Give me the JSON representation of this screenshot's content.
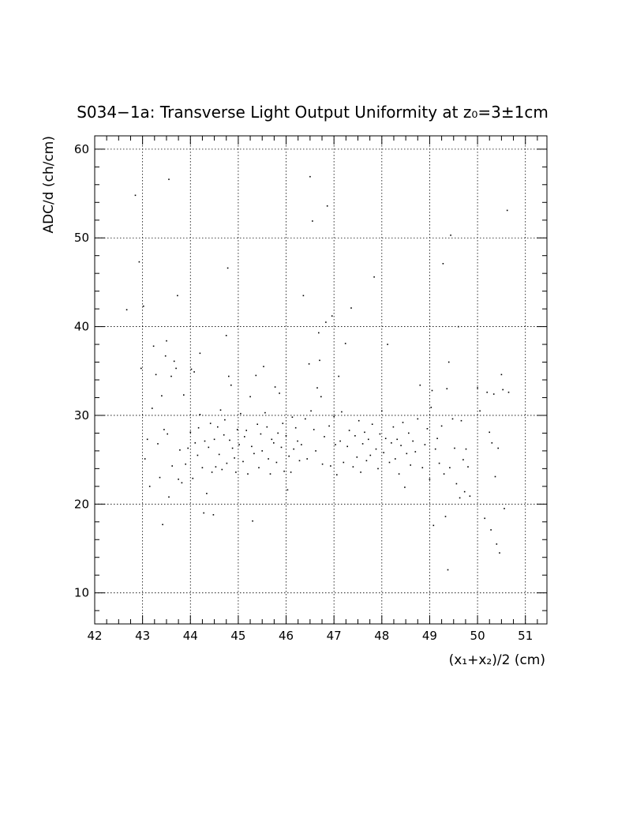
{
  "chart_data": {
    "type": "scatter",
    "title": "S034−1a: Transverse Light Output Uniformity at z₀=3±1cm",
    "xlabel": "(x₁+x₂)/2 (cm)",
    "ylabel": "ADC/d (ch/cm)",
    "xlim": [
      42,
      51.45
    ],
    "ylim": [
      6.5,
      61.5
    ],
    "xticks": [
      "42",
      "43",
      "44",
      "45",
      "46",
      "47",
      "48",
      "49",
      "50",
      "51"
    ],
    "yticks": [
      "10",
      "20",
      "30",
      "40",
      "50",
      "60"
    ],
    "grid": true,
    "points": [
      [
        42.67,
        41.9
      ],
      [
        42.85,
        54.8
      ],
      [
        42.93,
        47.3
      ],
      [
        42.97,
        35.3
      ],
      [
        43.02,
        42.3
      ],
      [
        43.05,
        25.1
      ],
      [
        43.1,
        27.3
      ],
      [
        43.15,
        22.0
      ],
      [
        43.2,
        30.8
      ],
      [
        43.23,
        37.8
      ],
      [
        43.28,
        34.6
      ],
      [
        43.32,
        26.8
      ],
      [
        43.36,
        23.0
      ],
      [
        43.4,
        32.2
      ],
      [
        43.42,
        17.7
      ],
      [
        43.45,
        28.4
      ],
      [
        43.48,
        36.7
      ],
      [
        43.5,
        38.4
      ],
      [
        43.52,
        27.9
      ],
      [
        43.55,
        20.8
      ],
      [
        43.55,
        56.6
      ],
      [
        43.6,
        34.4
      ],
      [
        43.62,
        24.3
      ],
      [
        43.66,
        36.1
      ],
      [
        43.7,
        35.3
      ],
      [
        43.73,
        43.5
      ],
      [
        43.75,
        22.8
      ],
      [
        43.78,
        26.1
      ],
      [
        43.82,
        22.4
      ],
      [
        43.86,
        32.3
      ],
      [
        43.9,
        24.5
      ],
      [
        43.95,
        26.3
      ],
      [
        44.0,
        28.1
      ],
      [
        44.02,
        35.2
      ],
      [
        44.05,
        22.9
      ],
      [
        44.08,
        34.9
      ],
      [
        44.1,
        26.9
      ],
      [
        44.15,
        25.5
      ],
      [
        44.17,
        28.6
      ],
      [
        44.2,
        30.1
      ],
      [
        44.2,
        37.0
      ],
      [
        44.25,
        24.1
      ],
      [
        44.28,
        19.0
      ],
      [
        44.3,
        27.1
      ],
      [
        44.34,
        21.2
      ],
      [
        44.38,
        26.4
      ],
      [
        44.42,
        29.1
      ],
      [
        44.45,
        23.6
      ],
      [
        44.48,
        18.8
      ],
      [
        44.5,
        27.3
      ],
      [
        44.53,
        24.2
      ],
      [
        44.57,
        28.7
      ],
      [
        44.6,
        25.6
      ],
      [
        44.63,
        30.6
      ],
      [
        44.66,
        23.9
      ],
      [
        44.7,
        27.8
      ],
      [
        44.72,
        29.5
      ],
      [
        44.75,
        39.0
      ],
      [
        44.76,
        24.6
      ],
      [
        44.78,
        46.6
      ],
      [
        44.8,
        34.4
      ],
      [
        44.82,
        27.2
      ],
      [
        44.85,
        33.4
      ],
      [
        44.88,
        26.3
      ],
      [
        44.92,
        25.2
      ],
      [
        44.95,
        23.6
      ],
      [
        44.98,
        28.4
      ],
      [
        45.02,
        26.7
      ],
      [
        45.05,
        30.2
      ],
      [
        45.1,
        24.8
      ],
      [
        45.13,
        27.6
      ],
      [
        45.17,
        28.3
      ],
      [
        45.2,
        23.4
      ],
      [
        45.25,
        32.1
      ],
      [
        45.28,
        26.5
      ],
      [
        45.3,
        18.1
      ],
      [
        45.33,
        25.7
      ],
      [
        45.37,
        34.5
      ],
      [
        45.4,
        29.0
      ],
      [
        45.43,
        24.1
      ],
      [
        45.47,
        27.9
      ],
      [
        45.5,
        26.0
      ],
      [
        45.53,
        35.5
      ],
      [
        45.56,
        30.3
      ],
      [
        45.6,
        28.7
      ],
      [
        45.63,
        25.1
      ],
      [
        45.67,
        23.4
      ],
      [
        45.7,
        27.3
      ],
      [
        45.74,
        26.9
      ],
      [
        45.77,
        33.2
      ],
      [
        45.8,
        24.7
      ],
      [
        45.83,
        28.0
      ],
      [
        45.86,
        32.5
      ],
      [
        45.9,
        26.4
      ],
      [
        45.93,
        29.1
      ],
      [
        45.96,
        23.7
      ],
      [
        46.0,
        27.7
      ],
      [
        46.03,
        21.6
      ],
      [
        46.06,
        25.4
      ],
      [
        46.1,
        23.6
      ],
      [
        46.13,
        29.8
      ],
      [
        46.16,
        26.2
      ],
      [
        46.2,
        28.6
      ],
      [
        46.24,
        27.1
      ],
      [
        46.28,
        24.9
      ],
      [
        46.32,
        26.7
      ],
      [
        46.36,
        43.5
      ],
      [
        46.4,
        29.6
      ],
      [
        46.44,
        25.1
      ],
      [
        46.48,
        35.8
      ],
      [
        46.5,
        56.9
      ],
      [
        46.52,
        30.5
      ],
      [
        46.55,
        51.9
      ],
      [
        46.58,
        28.4
      ],
      [
        46.62,
        26.0
      ],
      [
        46.65,
        33.1
      ],
      [
        46.68,
        39.3
      ],
      [
        46.7,
        36.2
      ],
      [
        46.73,
        32.1
      ],
      [
        46.76,
        24.5
      ],
      [
        46.8,
        27.6
      ],
      [
        46.83,
        40.5
      ],
      [
        46.86,
        53.6
      ],
      [
        46.9,
        28.8
      ],
      [
        46.93,
        24.3
      ],
      [
        46.96,
        41.2
      ],
      [
        47.0,
        29.9
      ],
      [
        47.03,
        26.7
      ],
      [
        47.06,
        23.3
      ],
      [
        47.1,
        34.4
      ],
      [
        47.13,
        27.1
      ],
      [
        47.16,
        30.4
      ],
      [
        47.2,
        24.7
      ],
      [
        47.24,
        38.1
      ],
      [
        47.28,
        26.5
      ],
      [
        47.32,
        28.3
      ],
      [
        47.36,
        42.1
      ],
      [
        47.4,
        24.2
      ],
      [
        47.44,
        27.7
      ],
      [
        47.48,
        25.3
      ],
      [
        47.52,
        29.4
      ],
      [
        47.56,
        23.6
      ],
      [
        47.6,
        26.8
      ],
      [
        47.64,
        28.1
      ],
      [
        47.68,
        24.9
      ],
      [
        47.72,
        27.3
      ],
      [
        47.76,
        25.5
      ],
      [
        47.8,
        29.0
      ],
      [
        47.84,
        45.6
      ],
      [
        47.88,
        26.2
      ],
      [
        47.92,
        24.0
      ],
      [
        47.96,
        27.9
      ],
      [
        48.0,
        30.5
      ],
      [
        48.04,
        25.8
      ],
      [
        48.08,
        27.4
      ],
      [
        48.12,
        38.0
      ],
      [
        48.16,
        24.7
      ],
      [
        48.2,
        26.9
      ],
      [
        48.24,
        28.7
      ],
      [
        48.28,
        25.1
      ],
      [
        48.32,
        27.3
      ],
      [
        48.36,
        23.4
      ],
      [
        48.4,
        26.6
      ],
      [
        48.44,
        29.2
      ],
      [
        48.48,
        21.9
      ],
      [
        48.52,
        25.7
      ],
      [
        48.56,
        28.0
      ],
      [
        48.6,
        24.4
      ],
      [
        48.65,
        27.1
      ],
      [
        48.7,
        25.9
      ],
      [
        48.75,
        29.6
      ],
      [
        48.8,
        33.4
      ],
      [
        48.85,
        24.1
      ],
      [
        48.9,
        26.7
      ],
      [
        48.95,
        28.5
      ],
      [
        49.0,
        22.8
      ],
      [
        49.03,
        30.9
      ],
      [
        49.05,
        32.8
      ],
      [
        49.08,
        17.6
      ],
      [
        49.12,
        26.2
      ],
      [
        49.16,
        27.4
      ],
      [
        49.2,
        24.6
      ],
      [
        49.25,
        28.8
      ],
      [
        49.28,
        47.1
      ],
      [
        49.3,
        23.4
      ],
      [
        49.33,
        18.6
      ],
      [
        49.36,
        33.0
      ],
      [
        49.38,
        12.6
      ],
      [
        49.4,
        36.0
      ],
      [
        49.42,
        24.1
      ],
      [
        49.44,
        50.3
      ],
      [
        49.48,
        29.6
      ],
      [
        49.52,
        26.3
      ],
      [
        49.56,
        22.3
      ],
      [
        49.6,
        40.0
      ],
      [
        49.63,
        20.7
      ],
      [
        49.66,
        29.4
      ],
      [
        49.7,
        25.0
      ],
      [
        49.73,
        21.4
      ],
      [
        49.76,
        26.2
      ],
      [
        49.8,
        24.2
      ],
      [
        49.84,
        20.9
      ],
      [
        50.0,
        33.1
      ],
      [
        50.05,
        30.5
      ],
      [
        50.15,
        18.4
      ],
      [
        50.2,
        32.6
      ],
      [
        50.25,
        28.1
      ],
      [
        50.28,
        17.1
      ],
      [
        50.3,
        26.9
      ],
      [
        50.34,
        32.4
      ],
      [
        50.37,
        23.1
      ],
      [
        50.4,
        15.5
      ],
      [
        50.43,
        26.3
      ],
      [
        50.46,
        14.5
      ],
      [
        50.5,
        34.6
      ],
      [
        50.53,
        32.9
      ],
      [
        50.56,
        19.5
      ],
      [
        50.62,
        53.1
      ],
      [
        50.65,
        32.6
      ]
    ]
  }
}
